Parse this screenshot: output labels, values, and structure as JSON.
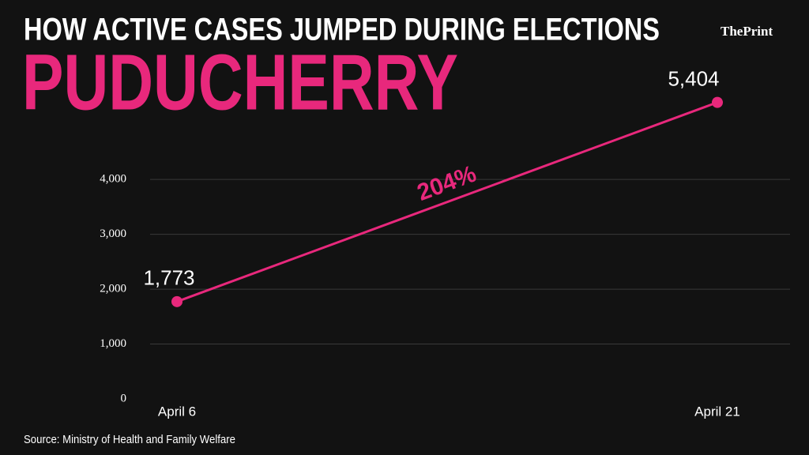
{
  "chart_data": {
    "type": "line",
    "title": "HOW ACTIVE CASES JUMPED DURING ELECTIONS",
    "subtitle": "PUDUCHERRY",
    "brand": "ThePrint",
    "annotation": "204%",
    "source": "Source: Ministry of Health and Family Welfare",
    "categories": [
      "April 6",
      "April 21"
    ],
    "series": [
      {
        "color": "#e8287c",
        "values": [
          1773,
          5404
        ],
        "value_labels": [
          "1,773",
          "5,404"
        ]
      }
    ],
    "ylim": [
      0,
      5600
    ],
    "yticks": [
      0,
      {
        "value": 1000,
        "label": "1,000"
      },
      {
        "value": 2000,
        "label": "2,000"
      },
      {
        "value": 3000,
        "label": "3,000"
      },
      {
        "value": 4000,
        "label": "4,000"
      }
    ],
    "grid": true
  }
}
